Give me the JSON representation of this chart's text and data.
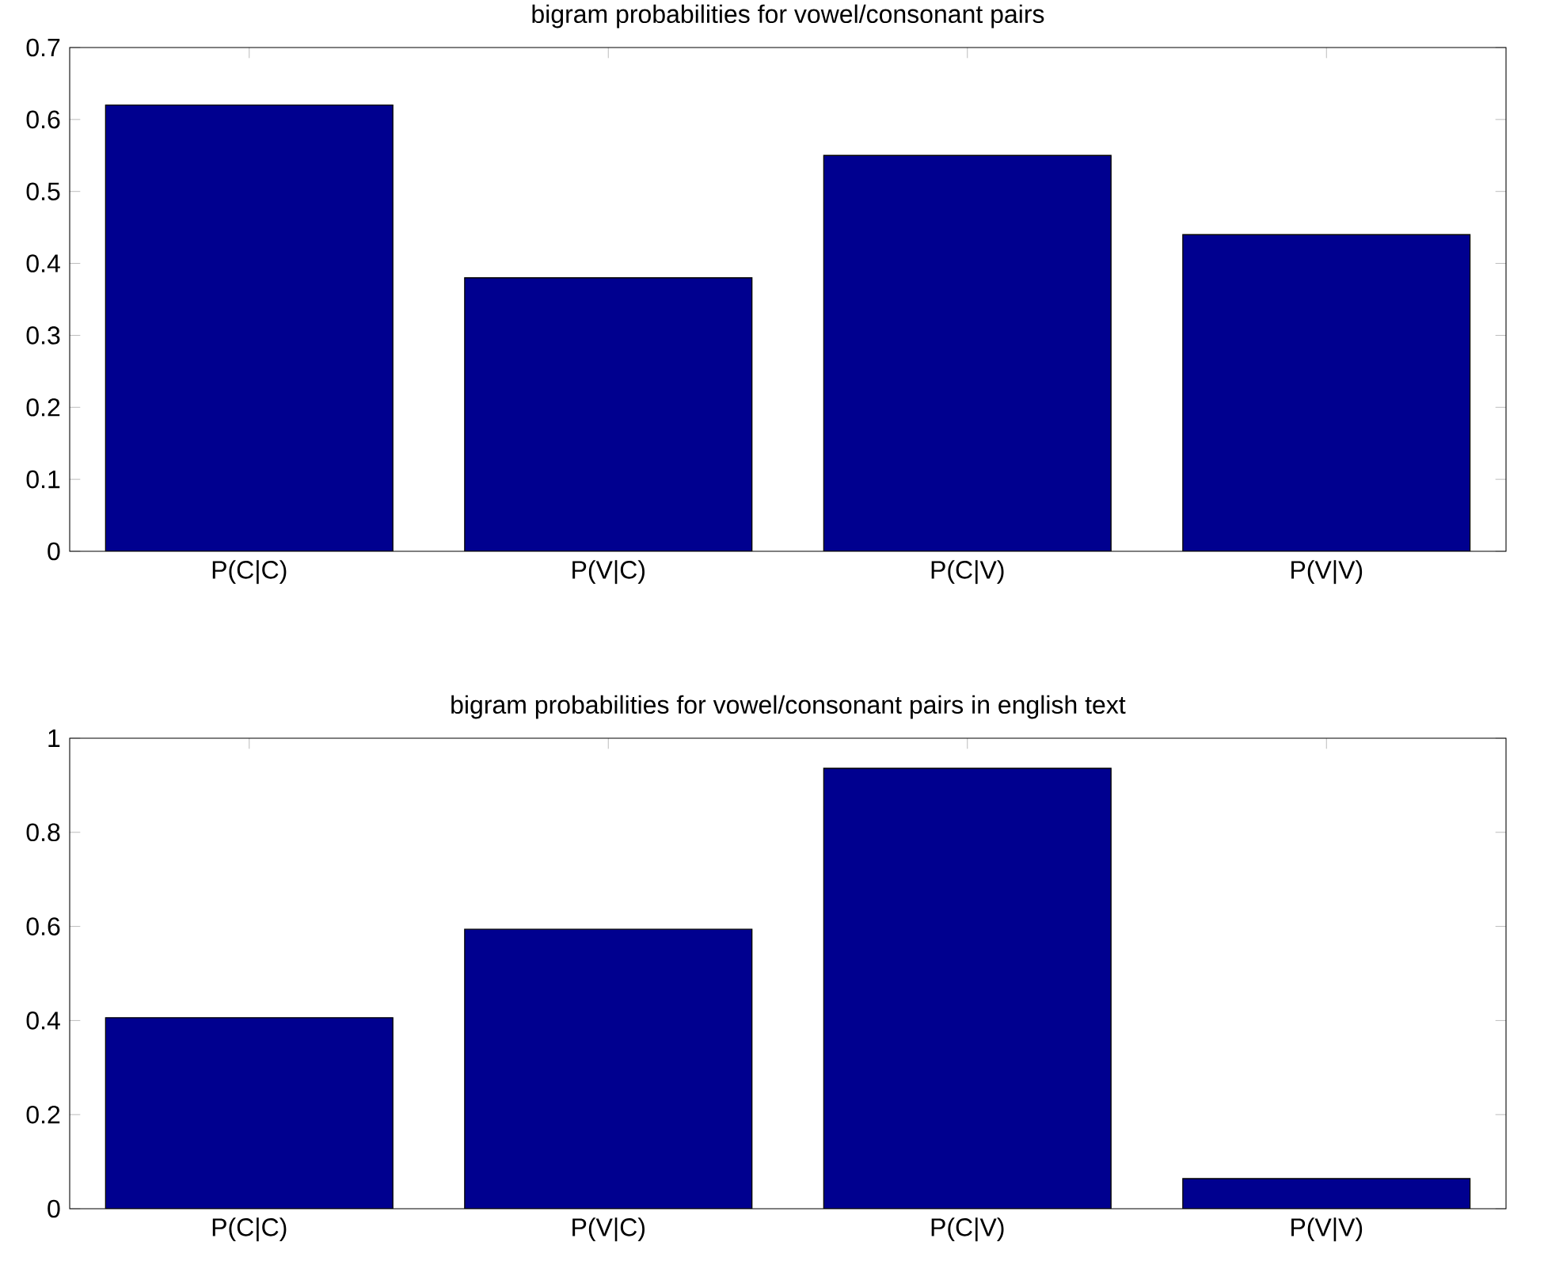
{
  "chart_data": [
    {
      "type": "bar",
      "title": "bigram probabilities for vowel/consonant pairs",
      "categories": [
        "P(C|C)",
        "P(V|C)",
        "P(C|V)",
        "P(V|V)"
      ],
      "values": [
        0.62,
        0.38,
        0.55,
        0.44
      ],
      "color": "#00008f",
      "ylim": [
        0,
        0.7
      ],
      "yticks": [
        0,
        0.1,
        0.2,
        0.3,
        0.4,
        0.5,
        0.6,
        0.7
      ],
      "grid": false
    },
    {
      "type": "bar",
      "title": "bigram probabilities for vowel/consonant pairs in english text",
      "categories": [
        "P(C|C)",
        "P(V|C)",
        "P(C|V)",
        "P(V|V)"
      ],
      "values": [
        0.406,
        0.594,
        0.936,
        0.064
      ],
      "color": "#00008f",
      "ylim": [
        0,
        1
      ],
      "yticks": [
        0,
        0.2,
        0.4,
        0.6,
        0.8,
        1
      ],
      "grid": false
    }
  ]
}
